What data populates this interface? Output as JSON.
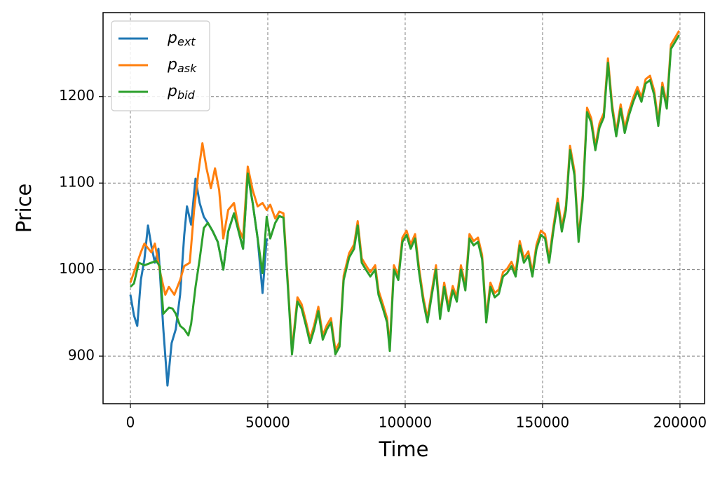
{
  "chart_data": {
    "type": "line",
    "xlabel": "Time",
    "ylabel": "Price",
    "xlim": [
      -9950,
      208950
    ],
    "ylim": [
      845,
      1297
    ],
    "xticks": [
      0,
      50000,
      100000,
      150000,
      200000
    ],
    "yticks": [
      900,
      1000,
      1100,
      1200
    ],
    "grid": true,
    "legend": "upper left",
    "series": [
      {
        "name": "p_ext",
        "color": "#1f77b4",
        "x": [
          0,
          1300,
          2500,
          3800,
          5100,
          6400,
          7600,
          8900,
          10200,
          12000,
          13500,
          15000,
          16500,
          18100,
          19600,
          20600,
          22100,
          23700,
          25200,
          26700,
          28200,
          30000,
          31800,
          33800,
          35600,
          37700,
          39400,
          41000,
          42700,
          44500,
          46300,
          48100,
          49600
        ],
        "values": [
          971,
          947,
          935,
          988,
          1012,
          1051,
          1028,
          1008,
          1024,
          931,
          866,
          915,
          931,
          971,
          1040,
          1073,
          1052,
          1105,
          1077,
          1061,
          1054,
          1044,
          1032,
          1000,
          1044,
          1065,
          1044,
          1024,
          1111,
          1077,
          1036,
          973,
          1036
        ]
      },
      {
        "name": "p_ask",
        "color": "#ff7f0e",
        "x": [
          0,
          3800,
          5100,
          7600,
          8900,
          10900,
          12700,
          14000,
          16000,
          18100,
          19600,
          21600,
          23200,
          24700,
          26200,
          27700,
          29300,
          30800,
          32300,
          33800,
          35600,
          37700,
          39400,
          41000,
          42700,
          44500,
          46300,
          48100,
          49600,
          50900,
          52700,
          54200,
          55700,
          57300,
          58800,
          60800,
          62300,
          63900,
          65400,
          66900,
          68400,
          70000,
          71500,
          73000,
          74600,
          76100,
          77600,
          79600,
          81400,
          82700,
          84200,
          85700,
          87300,
          89100,
          90300,
          91900,
          93400,
          94400,
          95900,
          97500,
          99000,
          100500,
          102000,
          103600,
          105100,
          106600,
          108100,
          109700,
          111200,
          112700,
          114200,
          115800,
          117300,
          118800,
          120300,
          121900,
          123400,
          124900,
          126500,
          128000,
          129500,
          131000,
          132600,
          134100,
          135600,
          137100,
          138700,
          140200,
          141700,
          143200,
          144800,
          146300,
          147800,
          149400,
          150900,
          152400,
          153900,
          155500,
          157000,
          158500,
          160000,
          161600,
          163100,
          164600,
          166200,
          167700,
          169200,
          170700,
          172300,
          173800,
          175300,
          176800,
          178400,
          179900,
          181400,
          183000,
          184500,
          186000,
          187500,
          189100,
          190600,
          192100,
          193600,
          195200,
          196700,
          198200,
          199700
        ],
        "values": [
          985,
          1020,
          1030,
          1020,
          1030,
          996,
          971,
          980,
          971,
          988,
          1004,
          1008,
          1069,
          1111,
          1146,
          1117,
          1094,
          1117,
          1092,
          1036,
          1069,
          1077,
          1048,
          1036,
          1119,
          1092,
          1073,
          1077,
          1069,
          1075,
          1059,
          1067,
          1065,
          985,
          907,
          968,
          960,
          940,
          920,
          936,
          957,
          924,
          936,
          944,
          907,
          916,
          993,
          1019,
          1029,
          1056,
          1013,
          1005,
          997,
          1005,
          976,
          960,
          944,
          911,
          1005,
          993,
          1037,
          1045,
          1029,
          1041,
          1001,
          968,
          944,
          976,
          1005,
          948,
          985,
          957,
          981,
          968,
          1005,
          981,
          1041,
          1033,
          1037,
          1017,
          944,
          985,
          973,
          977,
          997,
          1001,
          1009,
          997,
          1033,
          1013,
          1021,
          997,
          1029,
          1045,
          1041,
          1013,
          1049,
          1082,
          1049,
          1074,
          1143,
          1114,
          1037,
          1086,
          1187,
          1175,
          1143,
          1169,
          1181,
          1244,
          1191,
          1159,
          1191,
          1163,
          1183,
          1199,
          1211,
          1199,
          1220,
          1224,
          1207,
          1171,
          1216,
          1191,
          1260,
          1268,
          1276
        ]
      },
      {
        "name": "p_bid",
        "color": "#2ca02c",
        "x": [
          0,
          1300,
          3050,
          5100,
          7600,
          9400,
          10700,
          12000,
          14000,
          15300,
          16500,
          18100,
          19600,
          21100,
          22100,
          23700,
          25200,
          26700,
          28200,
          30000,
          31800,
          33800,
          35600,
          37700,
          39400,
          41000,
          42700,
          44500,
          46300,
          48100,
          49600,
          50900,
          52700,
          54200,
          55700,
          57300,
          58800,
          60800,
          62300,
          63900,
          65400,
          66900,
          68400,
          70000,
          71500,
          73000,
          74600,
          76100,
          77600,
          79600,
          81400,
          82700,
          84200,
          85700,
          87300,
          89100,
          90300,
          91900,
          93400,
          94400,
          95900,
          97500,
          99000,
          100500,
          102000,
          103600,
          105100,
          106600,
          108100,
          109700,
          111200,
          112700,
          114200,
          115800,
          117300,
          118800,
          120300,
          121900,
          123400,
          124900,
          126500,
          128000,
          129500,
          131000,
          132600,
          134100,
          135600,
          137100,
          138700,
          140200,
          141700,
          143200,
          144800,
          146300,
          147800,
          149400,
          150900,
          152400,
          153900,
          155500,
          157000,
          158500,
          160000,
          161600,
          163100,
          164600,
          166200,
          167700,
          169200,
          170700,
          172300,
          173800,
          175300,
          176800,
          178400,
          179900,
          181400,
          183000,
          184500,
          186000,
          187500,
          189100,
          190600,
          192100,
          193600,
          195200,
          196700,
          198200,
          199700
        ],
        "values": [
          980,
          984,
          1008,
          1005,
          1008,
          1010,
          1004,
          949,
          956,
          955,
          949,
          935,
          931,
          924,
          937,
          980,
          1012,
          1048,
          1054,
          1044,
          1032,
          1000,
          1044,
          1065,
          1044,
          1024,
          1111,
          1077,
          1036,
          996,
          1061,
          1036,
          1054,
          1062,
          1060,
          980,
          902,
          963,
          955,
          935,
          915,
          931,
          952,
          919,
          931,
          939,
          902,
          911,
          988,
          1014,
          1024,
          1051,
          1008,
          1000,
          992,
          1000,
          971,
          955,
          939,
          906,
          1000,
          988,
          1032,
          1040,
          1024,
          1036,
          996,
          963,
          939,
          971,
          1000,
          943,
          980,
          952,
          976,
          963,
          1000,
          976,
          1036,
          1028,
          1032,
          1012,
          939,
          980,
          968,
          972,
          992,
          996,
          1004,
          992,
          1028,
          1008,
          1016,
          992,
          1024,
          1040,
          1036,
          1008,
          1044,
          1077,
          1044,
          1069,
          1138,
          1109,
          1032,
          1081,
          1182,
          1170,
          1138,
          1164,
          1176,
          1239,
          1186,
          1154,
          1186,
          1158,
          1178,
          1194,
          1206,
          1194,
          1215,
          1219,
          1202,
          1166,
          1211,
          1186,
          1255,
          1263,
          1271
        ]
      }
    ]
  }
}
